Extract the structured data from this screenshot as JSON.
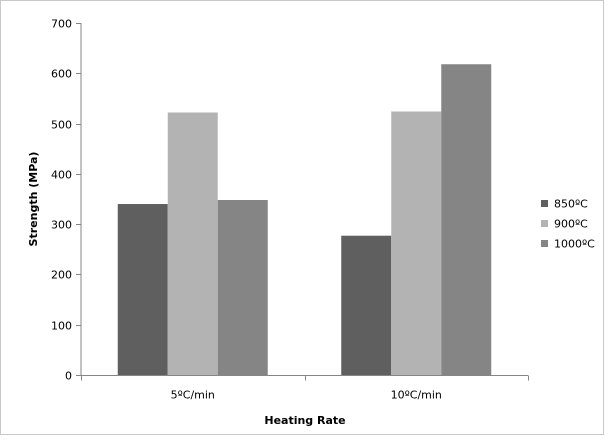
{
  "chart_data": {
    "type": "bar",
    "title": "",
    "xlabel": "Heating Rate",
    "ylabel": "Strength (MPa)",
    "categories": [
      "5ºC/min",
      "10ºC/min"
    ],
    "series": [
      {
        "name": "850ºC",
        "values": [
          340,
          277
        ],
        "color": "#5f5f5f"
      },
      {
        "name": "900ºC",
        "values": [
          522,
          524
        ],
        "color": "#b3b3b3"
      },
      {
        "name": "1000ºC",
        "values": [
          348,
          618
        ],
        "color": "#858585"
      }
    ],
    "ylim": [
      0,
      700
    ],
    "yticks": [
      0,
      100,
      200,
      300,
      400,
      500,
      600,
      700
    ],
    "grid": false,
    "legend_position": "right"
  }
}
